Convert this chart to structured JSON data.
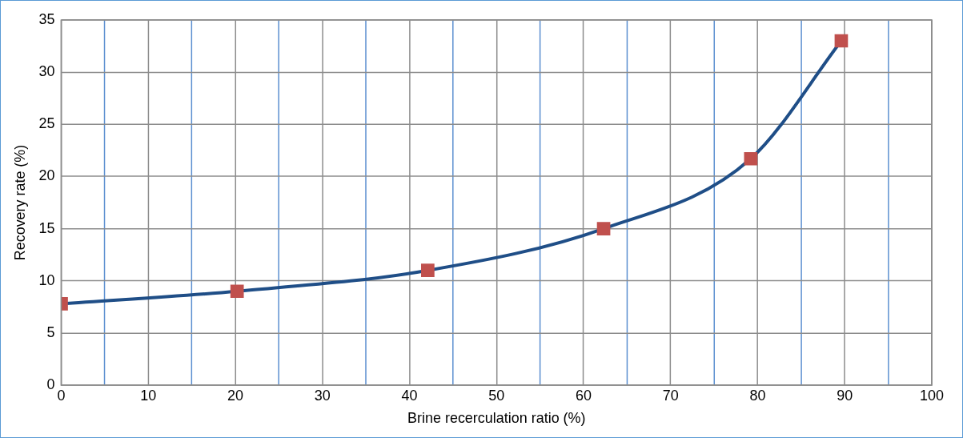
{
  "chart_data": {
    "type": "line",
    "xlabel": "Brine recerculation ratio (%)",
    "ylabel": "Recovery rate (%)",
    "x": [
      0,
      20.2,
      42.1,
      62.3,
      79.2,
      89.6
    ],
    "series": [
      {
        "color": "#1f4e87",
        "values": [
          7.8,
          9.0,
          11.0,
          15.0,
          21.7,
          33.0
        ]
      }
    ],
    "marker": "square",
    "line_style": "solid",
    "grid": true,
    "legend": false,
    "xlim": [
      0,
      100
    ],
    "xticks": [
      0,
      {
        "value": 5,
        "label": null
      },
      10,
      {
        "value": 15,
        "label": null
      },
      20,
      {
        "value": 25,
        "label": null
      },
      30,
      {
        "value": 35,
        "label": null
      },
      40,
      {
        "value": 45,
        "label": null
      },
      50,
      {
        "value": 55,
        "label": null
      },
      60,
      {
        "value": 65,
        "label": null
      },
      70,
      {
        "value": 75,
        "label": null
      },
      80,
      {
        "value": 85,
        "label": null
      },
      90,
      {
        "value": 95,
        "label": null
      },
      100
    ],
    "ylim": [
      0,
      35
    ],
    "yticks": [
      0,
      5,
      10,
      15,
      20,
      25,
      30,
      35
    ]
  }
}
